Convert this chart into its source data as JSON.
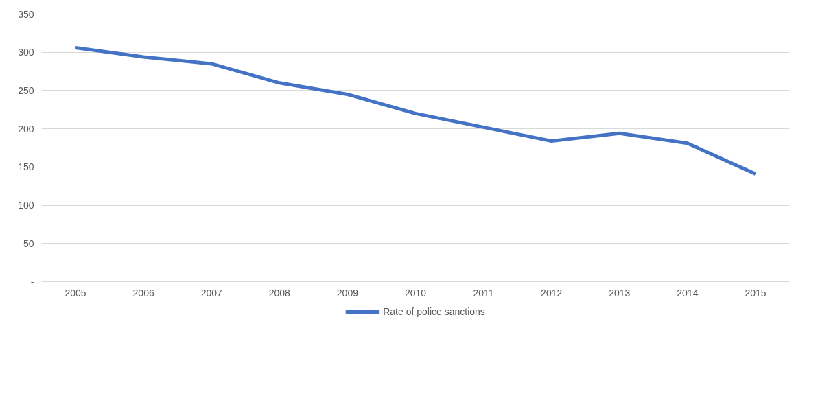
{
  "chart_data": {
    "type": "line",
    "categories": [
      "2005",
      "2006",
      "2007",
      "2008",
      "2009",
      "2010",
      "2011",
      "2012",
      "2013",
      "2014",
      "2015"
    ],
    "series": [
      {
        "name": "Rate of police sanctions",
        "color": "#4472c4",
        "values": [
          306,
          294,
          285,
          260,
          245,
          220,
          202,
          184,
          194,
          181,
          141
        ]
      }
    ],
    "ylim": [
      0,
      350
    ],
    "yticks": [
      {
        "value": 0,
        "label": "-"
      },
      50,
      100,
      150,
      200,
      250,
      300,
      350
    ],
    "grid": "y",
    "legend": "bottom",
    "marker": "none",
    "line_style": "solid"
  }
}
